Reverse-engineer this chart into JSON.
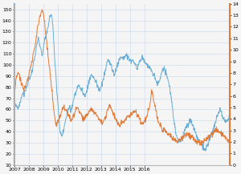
{
  "background_color": "#f5f5f5",
  "grid_color": "#c8d8e8",
  "wti_color": "#6aaed6",
  "ng_color": "#e07b39",
  "left_ylim": [
    10,
    155
  ],
  "right_ylim": [
    0,
    14
  ],
  "left_yticks": [
    10,
    20,
    30,
    40,
    50,
    60,
    70,
    80,
    90,
    100,
    110,
    120,
    130,
    140,
    150
  ],
  "right_yticks": [
    0,
    1,
    2,
    3,
    4,
    5,
    6,
    7,
    8,
    9,
    10,
    11,
    12,
    13,
    14
  ],
  "line_width": 0.7,
  "left_spine_color": "#6aaed6",
  "right_spine_color": "#e07b39",
  "tick_fontsize": 4.5,
  "x_tick_labels": [
    "2007",
    "2008",
    "2009",
    "2010",
    "2011",
    "2012",
    "2013",
    "2014",
    "2015",
    "2016"
  ],
  "wti_data": [
    61,
    65,
    63,
    60,
    64,
    67,
    72,
    74,
    72,
    77,
    80,
    82,
    87,
    89,
    92,
    96,
    103,
    107,
    115,
    120,
    125,
    118,
    114,
    108,
    116,
    122,
    126,
    130,
    135,
    141,
    145,
    143,
    136,
    115,
    96,
    80,
    68,
    52,
    40,
    36,
    38,
    41,
    48,
    53,
    57,
    60,
    62,
    58,
    62,
    68,
    72,
    76,
    79,
    82,
    80,
    79,
    77,
    75,
    73,
    74,
    77,
    80,
    84,
    88,
    92,
    90,
    88,
    86,
    84,
    81,
    79,
    77,
    80,
    84,
    88,
    93,
    97,
    101,
    104,
    103,
    100,
    97,
    94,
    91,
    95,
    98,
    101,
    104,
    106,
    107,
    106,
    106,
    107,
    108,
    107,
    106,
    105,
    104,
    104,
    103,
    101,
    100,
    98,
    100,
    102,
    105,
    107,
    106,
    104,
    102,
    100,
    99,
    97,
    96,
    95,
    93,
    91,
    88,
    85,
    82,
    84,
    87,
    91,
    95,
    98,
    96,
    93,
    90,
    85,
    80,
    73,
    65,
    55,
    48,
    41,
    36,
    33,
    30,
    31,
    33,
    36,
    40,
    43,
    45,
    46,
    48,
    50,
    49,
    47,
    44,
    41,
    38,
    35,
    33,
    31,
    30,
    28,
    26,
    25,
    24,
    26,
    29,
    32,
    35,
    38,
    42,
    46,
    48,
    51,
    54,
    57,
    60,
    58,
    55,
    52,
    50,
    49,
    50,
    52,
    55
  ],
  "ng_data": [
    6.5,
    7.2,
    7.8,
    8.0,
    7.8,
    7.5,
    7.0,
    6.8,
    6.5,
    6.8,
    7.0,
    7.5,
    7.8,
    8.2,
    8.8,
    9.2,
    9.8,
    10.3,
    11.0,
    11.8,
    12.3,
    12.8,
    13.2,
    13.5,
    13.2,
    12.5,
    11.5,
    10.5,
    9.5,
    8.5,
    7.5,
    6.5,
    5.5,
    4.5,
    3.8,
    3.5,
    3.8,
    4.0,
    4.3,
    4.6,
    4.9,
    5.1,
    5.0,
    4.8,
    4.6,
    4.3,
    4.1,
    3.9,
    4.0,
    4.2,
    4.5,
    4.8,
    5.0,
    4.8,
    4.6,
    4.4,
    4.3,
    4.2,
    4.0,
    4.1,
    4.3,
    4.5,
    4.6,
    4.8,
    4.9,
    4.8,
    4.6,
    4.5,
    4.3,
    4.2,
    4.0,
    3.9,
    3.8,
    3.7,
    3.8,
    4.0,
    4.3,
    4.6,
    4.9,
    5.2,
    5.0,
    4.8,
    4.5,
    4.2,
    4.0,
    3.8,
    3.6,
    3.5,
    3.5,
    3.6,
    3.7,
    3.8,
    3.9,
    4.0,
    4.1,
    4.2,
    4.3,
    4.4,
    4.5,
    4.6,
    4.7,
    4.6,
    4.4,
    4.2,
    4.0,
    3.8,
    3.6,
    3.5,
    3.8,
    4.0,
    4.3,
    4.6,
    5.0,
    5.5,
    6.5,
    6.2,
    5.5,
    5.0,
    4.5,
    4.0,
    3.7,
    3.5,
    3.3,
    3.2,
    3.1,
    3.0,
    2.9,
    2.8,
    2.7,
    2.6,
    2.5,
    2.4,
    2.3,
    2.2,
    2.1,
    2.0,
    2.0,
    2.1,
    2.2,
    2.3,
    2.4,
    2.5,
    2.6,
    2.7,
    2.8,
    2.7,
    2.6,
    2.5,
    2.4,
    2.3,
    2.2,
    2.1,
    2.0,
    1.9,
    1.8,
    1.8,
    1.9,
    2.0,
    2.1,
    2.2,
    2.3,
    2.4,
    2.5,
    2.6,
    2.7,
    2.8,
    2.9,
    3.0,
    3.1,
    3.0,
    2.9,
    2.8,
    2.7,
    2.6,
    2.5,
    2.4,
    2.3,
    2.2,
    2.2,
    2.3
  ]
}
